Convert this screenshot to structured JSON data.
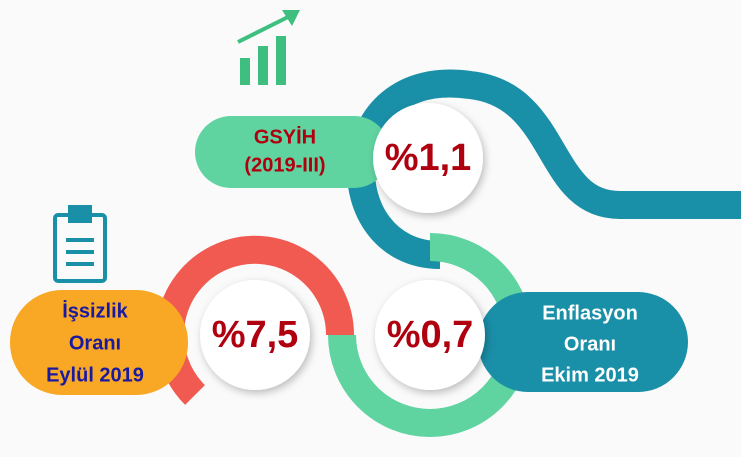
{
  "items": [
    {
      "label": [
        "GSYİH",
        "(2019-III)"
      ],
      "value": "%1,1"
    },
    {
      "label": [
        "İşsizlik",
        "Oranı",
        "Eylül 2019"
      ],
      "value": "%7,5"
    },
    {
      "label": [
        "Enflasyon",
        "Oranı",
        "Ekim 2019"
      ],
      "value": "%0,7"
    }
  ]
}
